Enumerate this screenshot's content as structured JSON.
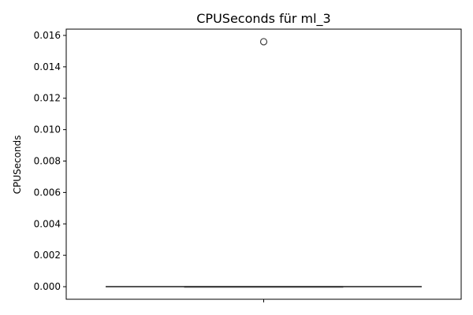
{
  "chart_data": {
    "type": "box",
    "title": "CPUSeconds für ml_3",
    "ylabel": "CPUSeconds",
    "xlabel": "",
    "ylim": [
      -0.0008,
      0.0164
    ],
    "yticks": [
      0.0,
      0.002,
      0.004,
      0.006,
      0.008,
      0.01,
      0.012,
      0.014,
      0.016
    ],
    "ytick_labels": [
      "0.000",
      "0.002",
      "0.004",
      "0.006",
      "0.008",
      "0.010",
      "0.012",
      "0.014",
      "0.016"
    ],
    "box": {
      "whisker_low": 0.0,
      "q1": 0.0,
      "median": 0.0,
      "q3": 0.0,
      "whisker_high": 0.0,
      "outliers": [
        0.0156
      ]
    },
    "grid": false,
    "colors": {
      "box_line": "#3d3d3d",
      "outlier_edge": "#3d3d3d",
      "axes": "#000000"
    }
  }
}
